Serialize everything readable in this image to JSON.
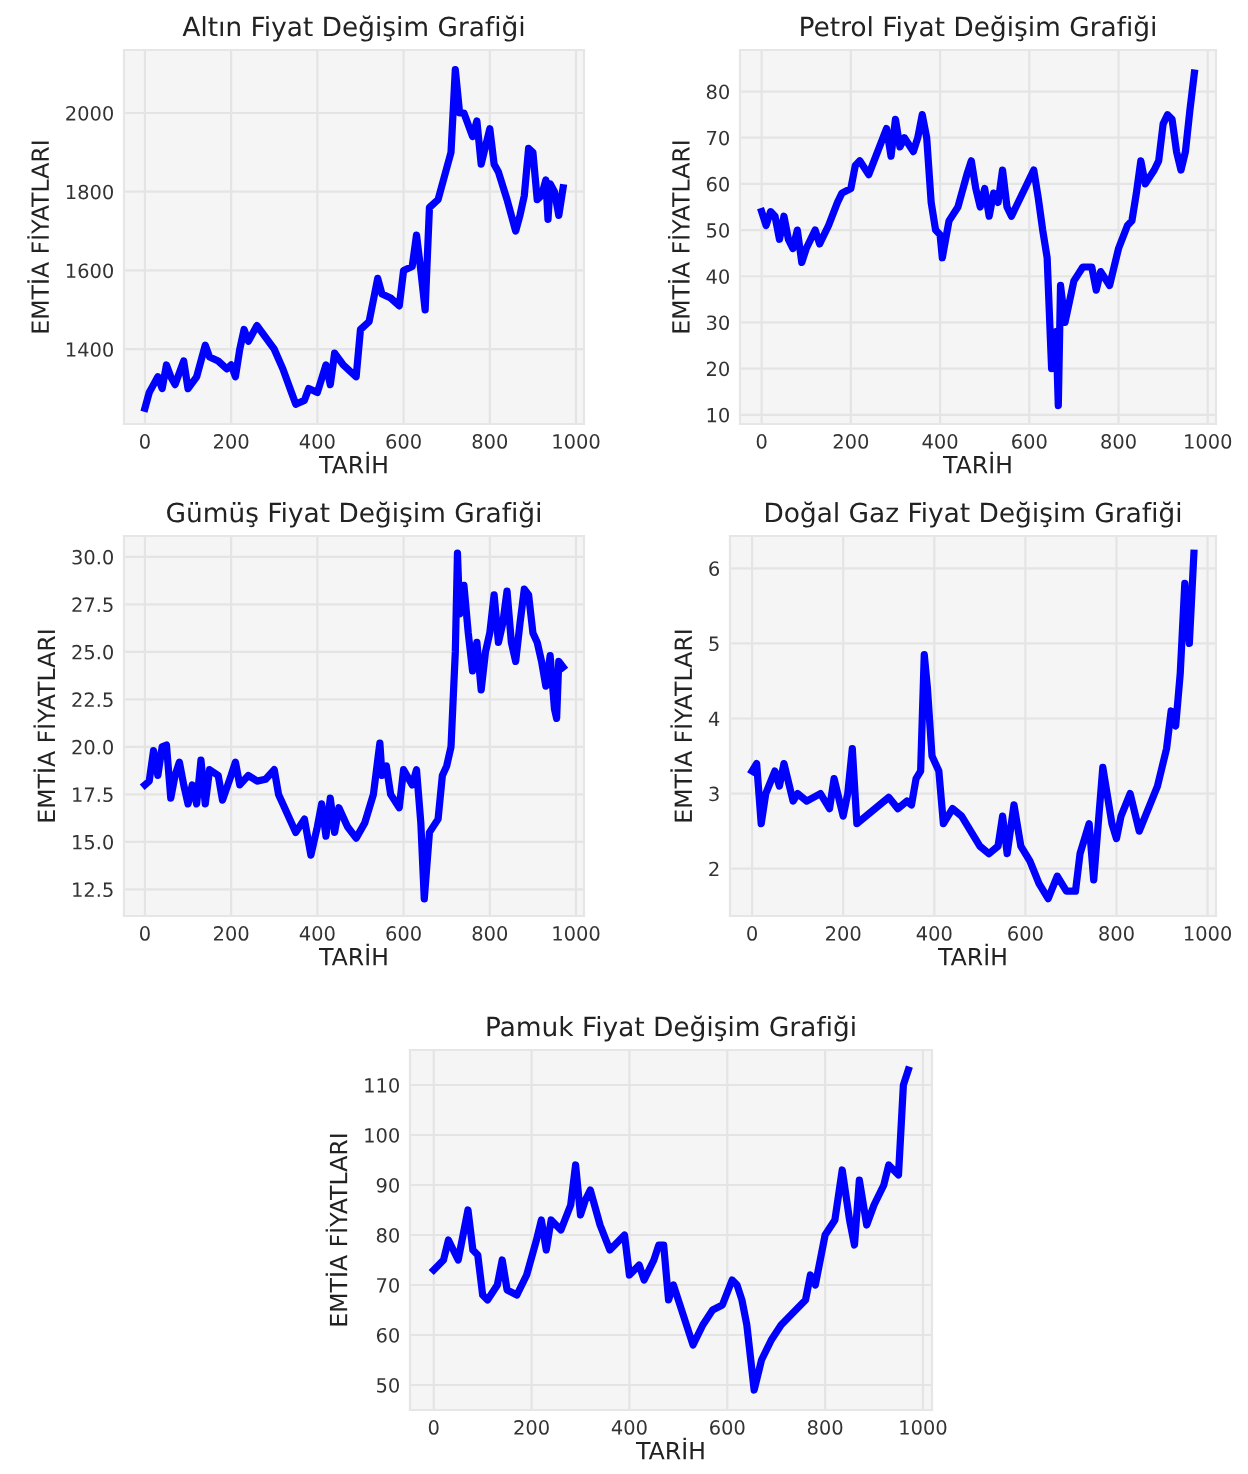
{
  "chart_data": [
    {
      "type": "line",
      "title": "Altın Fiyat Değişim Grafiği",
      "xlabel": "TARİH",
      "ylabel": "EMTİA FİYATLARI",
      "grid": true,
      "line_style": "solid",
      "xlim": [
        -48.5,
        1018.5
      ],
      "ylim": [
        1210,
        2160
      ],
      "xticks": [
        0,
        200,
        400,
        600,
        800,
        1000
      ],
      "yticks": [
        1400,
        1600,
        1800,
        2000
      ],
      "series": [
        {
          "color": "#0000ff",
          "x": [
            0,
            10,
            20,
            30,
            40,
            50,
            60,
            70,
            80,
            90,
            100,
            120,
            140,
            150,
            170,
            190,
            200,
            210,
            220,
            230,
            240,
            260,
            280,
            300,
            320,
            340,
            350,
            370,
            380,
            400,
            420,
            430,
            440,
            460,
            480,
            490,
            500,
            520,
            540,
            550,
            570,
            590,
            600,
            620,
            630,
            640,
            650,
            660,
            680,
            700,
            710,
            720,
            730,
            740,
            760,
            770,
            780,
            800,
            810,
            820,
            840,
            850,
            860,
            870,
            880,
            890,
            900,
            910,
            920,
            930,
            935,
            940,
            950,
            960,
            970
          ],
          "values": [
            1250,
            1290,
            1310,
            1330,
            1300,
            1360,
            1330,
            1310,
            1340,
            1370,
            1300,
            1330,
            1410,
            1380,
            1370,
            1350,
            1360,
            1330,
            1400,
            1450,
            1420,
            1460,
            1430,
            1400,
            1350,
            1290,
            1260,
            1270,
            1300,
            1290,
            1360,
            1310,
            1390,
            1360,
            1340,
            1330,
            1450,
            1470,
            1580,
            1540,
            1530,
            1510,
            1600,
            1610,
            1690,
            1600,
            1500,
            1760,
            1780,
            1860,
            1900,
            2110,
            2000,
            2000,
            1940,
            1980,
            1870,
            1960,
            1870,
            1850,
            1780,
            1740,
            1700,
            1740,
            1790,
            1910,
            1900,
            1780,
            1790,
            1830,
            1730,
            1820,
            1800,
            1740,
            1810
          ]
        }
      ]
    },
    {
      "type": "line",
      "title": "Petrol Fiyat Değişim Grafiği",
      "xlabel": "TARİH",
      "ylabel": "EMTİA FİYATLARI",
      "grid": true,
      "line_style": "solid",
      "xlim": [
        -48.5,
        1018.5
      ],
      "ylim": [
        8,
        89
      ],
      "xticks": [
        0,
        200,
        400,
        600,
        800,
        1000
      ],
      "yticks": [
        10,
        20,
        30,
        40,
        50,
        60,
        70,
        80
      ],
      "series": [
        {
          "color": "#0000ff",
          "x": [
            0,
            10,
            20,
            30,
            40,
            50,
            60,
            70,
            80,
            90,
            100,
            120,
            130,
            150,
            170,
            180,
            200,
            210,
            220,
            240,
            260,
            280,
            290,
            300,
            310,
            320,
            340,
            350,
            360,
            370,
            380,
            390,
            400,
            405,
            420,
            440,
            460,
            470,
            480,
            490,
            500,
            510,
            520,
            530,
            540,
            550,
            560,
            580,
            600,
            610,
            620,
            630,
            640,
            650,
            660,
            665,
            670,
            680,
            700,
            720,
            740,
            750,
            760,
            780,
            800,
            820,
            830,
            840,
            850,
            860,
            880,
            890,
            900,
            910,
            920,
            930,
            940,
            950,
            960,
            970
          ],
          "values": [
            54,
            51,
            54,
            53,
            48,
            53,
            48,
            46,
            50,
            43,
            46,
            50,
            47,
            51,
            56,
            58,
            59,
            64,
            65,
            62,
            67,
            72,
            66,
            74,
            68,
            70,
            67,
            70,
            75,
            70,
            56,
            50,
            49,
            44,
            52,
            55,
            62,
            65,
            59,
            55,
            59,
            53,
            58,
            56,
            63,
            55,
            53,
            57,
            61,
            63,
            57,
            50,
            44,
            20,
            28,
            12,
            38,
            30,
            39,
            42,
            42,
            37,
            41,
            38,
            46,
            51,
            52,
            58,
            65,
            60,
            63,
            65,
            73,
            75,
            74,
            67,
            63,
            67,
            76,
            84
          ]
        }
      ]
    },
    {
      "type": "line",
      "title": "Gümüş Fiyat Değişim Grafiği",
      "xlabel": "TARİH",
      "ylabel": "EMTİA FİYATLARI",
      "grid": true,
      "line_style": "solid",
      "xlim": [
        -48.5,
        1018.5
      ],
      "ylim": [
        11.1,
        31.1
      ],
      "xticks": [
        0,
        200,
        400,
        600,
        800,
        1000
      ],
      "yticks": [
        12.5,
        {
          "value": 15,
          "label": "15.0"
        },
        17.5,
        {
          "value": 20,
          "label": "20.0"
        },
        22.5,
        {
          "value": 25,
          "label": "25.0"
        },
        27.5,
        {
          "value": 30,
          "label": "30.0"
        }
      ],
      "series": [
        {
          "color": "#0000ff",
          "x": [
            0,
            10,
            20,
            30,
            40,
            50,
            60,
            70,
            80,
            90,
            100,
            110,
            120,
            130,
            140,
            150,
            170,
            180,
            200,
            210,
            220,
            240,
            260,
            280,
            300,
            310,
            330,
            350,
            370,
            385,
            400,
            410,
            420,
            430,
            440,
            450,
            470,
            490,
            510,
            530,
            545,
            550,
            560,
            570,
            590,
            600,
            620,
            630,
            640,
            648,
            660,
            680,
            690,
            700,
            710,
            720,
            725,
            730,
            740,
            750,
            760,
            770,
            780,
            790,
            800,
            810,
            820,
            830,
            840,
            850,
            860,
            870,
            880,
            890,
            900,
            910,
            920,
            930,
            940,
            950,
            955,
            960,
            970
          ],
          "values": [
            18,
            18.2,
            19.8,
            18.5,
            20,
            20.1,
            17.3,
            18.5,
            19.2,
            18,
            17,
            18,
            17,
            19.3,
            17,
            18.8,
            18.5,
            17.2,
            18.5,
            19.2,
            18,
            18.5,
            18.2,
            18.3,
            18.8,
            17.5,
            16.5,
            15.5,
            16.2,
            14.3,
            15.8,
            17,
            15.3,
            17.3,
            15.5,
            16.8,
            15.8,
            15.2,
            16,
            17.5,
            20.2,
            18.5,
            19,
            17.5,
            16.8,
            18.8,
            18,
            18.8,
            16,
            12,
            15.5,
            16.2,
            18.5,
            19,
            20,
            25,
            30.2,
            27,
            28.5,
            26,
            24,
            25.5,
            23,
            25,
            26,
            28,
            25.5,
            26.5,
            28.2,
            25.5,
            24.5,
            26.5,
            28.3,
            28,
            26,
            25.5,
            24.5,
            23.2,
            24.8,
            22,
            21.5,
            24.5,
            24.2
          ]
        }
      ]
    },
    {
      "type": "line",
      "title": "Doğal Gaz Fiyat Değişim Grafiği",
      "xlabel": "TARİH",
      "ylabel": "EMTİA FİYATLARI",
      "grid": true,
      "line_style": "solid",
      "xlim": [
        -48.5,
        1018.5
      ],
      "ylim": [
        1.37,
        6.43
      ],
      "xticks": [
        0,
        200,
        400,
        600,
        800,
        1000
      ],
      "yticks": [
        2,
        3,
        4,
        5,
        6
      ],
      "series": [
        {
          "color": "#0000ff",
          "x": [
            0,
            10,
            20,
            30,
            50,
            60,
            70,
            90,
            100,
            120,
            150,
            170,
            180,
            200,
            210,
            220,
            230,
            250,
            270,
            300,
            320,
            340,
            350,
            360,
            370,
            378,
            385,
            395,
            410,
            420,
            440,
            460,
            480,
            500,
            520,
            540,
            550,
            560,
            575,
            590,
            610,
            630,
            650,
            670,
            690,
            710,
            720,
            740,
            750,
            770,
            790,
            800,
            810,
            830,
            850,
            870,
            890,
            910,
            920,
            930,
            940,
            950,
            960,
            970
          ],
          "values": [
            3.3,
            3.4,
            2.6,
            3.0,
            3.3,
            3.1,
            3.4,
            2.9,
            3.0,
            2.9,
            3.0,
            2.8,
            3.2,
            2.7,
            3.0,
            3.6,
            2.6,
            2.7,
            2.8,
            2.95,
            2.8,
            2.9,
            2.85,
            3.2,
            3.3,
            4.85,
            4.4,
            3.5,
            3.3,
            2.6,
            2.8,
            2.7,
            2.5,
            2.3,
            2.2,
            2.3,
            2.7,
            2.2,
            2.85,
            2.3,
            2.1,
            1.8,
            1.6,
            1.9,
            1.7,
            1.7,
            2.2,
            2.6,
            1.85,
            3.35,
            2.6,
            2.4,
            2.7,
            3.0,
            2.5,
            2.8,
            3.1,
            3.6,
            4.1,
            3.9,
            4.6,
            5.8,
            5.0,
            6.2
          ]
        }
      ]
    },
    {
      "type": "line",
      "title": "Pamuk Fiyat Değişim Grafiği",
      "xlabel": "TARİH",
      "ylabel": "EMTİA FİYATLARI",
      "grid": true,
      "line_style": "solid",
      "xlim": [
        -48.5,
        1018.5
      ],
      "ylim": [
        45,
        117
      ],
      "xticks": [
        0,
        200,
        400,
        600,
        800,
        1000
      ],
      "yticks": [
        50,
        60,
        70,
        80,
        90,
        100,
        110
      ],
      "series": [
        {
          "color": "#0000ff",
          "x": [
            0,
            10,
            20,
            30,
            40,
            50,
            60,
            70,
            80,
            90,
            100,
            110,
            130,
            140,
            150,
            170,
            190,
            210,
            220,
            230,
            240,
            260,
            280,
            290,
            300,
            310,
            320,
            340,
            360,
            380,
            390,
            400,
            420,
            430,
            450,
            460,
            470,
            480,
            490,
            510,
            530,
            550,
            570,
            590,
            610,
            620,
            630,
            640,
            655,
            670,
            690,
            710,
            740,
            760,
            770,
            780,
            800,
            820,
            835,
            850,
            860,
            870,
            885,
            900,
            920,
            930,
            950,
            960,
            970
          ],
          "values": [
            73,
            74,
            75,
            79,
            77,
            75,
            80,
            85,
            77,
            76,
            68,
            67,
            70,
            75,
            69,
            68,
            72,
            79,
            83,
            77,
            83,
            81,
            86,
            94,
            84,
            87,
            89,
            82,
            77,
            79,
            80,
            72,
            74,
            71,
            75,
            78,
            78,
            67,
            70,
            64,
            58,
            62,
            65,
            66,
            71,
            70,
            67,
            62,
            49,
            55,
            59,
            62,
            65,
            67,
            72,
            70,
            80,
            83,
            93,
            83,
            78,
            91,
            82,
            86,
            90,
            94,
            92,
            110,
            113
          ]
        }
      ]
    }
  ]
}
